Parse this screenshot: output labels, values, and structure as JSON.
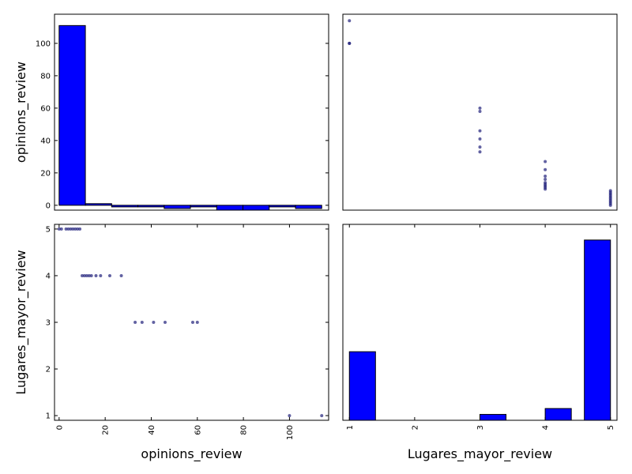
{
  "colors": {
    "bar": "#0000ff",
    "point": "#1f1f7a",
    "frame": "#000000",
    "background": "#ffffff"
  },
  "chart_data": [
    {
      "id": "opinions-hist",
      "type": "bar",
      "subplot": "top-left",
      "xlabel": "",
      "ylabel": "opinions_review",
      "xlim": [
        -2,
        117
      ],
      "ylim": [
        -3,
        118
      ],
      "yticks": [
        "0",
        "20",
        "40",
        "60",
        "80",
        "100"
      ],
      "bins": [
        {
          "x0": 0.0,
          "x1": 11.4,
          "count": 111
        },
        {
          "x0": 11.4,
          "x1": 22.8,
          "count": 1
        },
        {
          "x0": 22.8,
          "x1": 34.2,
          "count": -1
        },
        {
          "x0": 34.2,
          "x1": 45.6,
          "count": -1
        },
        {
          "x0": 45.6,
          "x1": 57.0,
          "count": -2
        },
        {
          "x0": 57.0,
          "x1": 68.4,
          "count": -1
        },
        {
          "x0": 68.4,
          "x1": 79.8,
          "count": -3
        },
        {
          "x0": 79.8,
          "x1": 91.2,
          "count": -3
        },
        {
          "x0": 91.2,
          "x1": 102.6,
          "count": -1
        },
        {
          "x0": 102.6,
          "x1": 114.0,
          "count": -2
        }
      ]
    },
    {
      "id": "scatter-top-right",
      "type": "scatter",
      "subplot": "top-right",
      "xlabel": "",
      "ylabel": "",
      "xlim": [
        0.9,
        5.1
      ],
      "ylim": [
        -3,
        118
      ],
      "points": [
        [
          1,
          114
        ],
        [
          1,
          100
        ],
        [
          1,
          100
        ],
        [
          3,
          60
        ],
        [
          3,
          58
        ],
        [
          3,
          46
        ],
        [
          3,
          41
        ],
        [
          3,
          36
        ],
        [
          3,
          33
        ],
        [
          4,
          27
        ],
        [
          4,
          22
        ],
        [
          4,
          18
        ],
        [
          4,
          16
        ],
        [
          4,
          14
        ],
        [
          4,
          13
        ],
        [
          4,
          12
        ],
        [
          4,
          11
        ],
        [
          4,
          10
        ],
        [
          5,
          9
        ],
        [
          5,
          8
        ],
        [
          5,
          7
        ],
        [
          5,
          6
        ],
        [
          5,
          5
        ],
        [
          5,
          4
        ],
        [
          5,
          3
        ],
        [
          5,
          2
        ],
        [
          5,
          1
        ],
        [
          5,
          0
        ]
      ]
    },
    {
      "id": "scatter-bottom-left",
      "type": "scatter",
      "subplot": "bottom-left",
      "xlabel": "opinions_review",
      "ylabel": "Lugares_mayor_review",
      "xlim": [
        -2,
        117
      ],
      "ylim": [
        0.9,
        5.1
      ],
      "xticks": [
        "0",
        "20",
        "40",
        "60",
        "80",
        "100"
      ],
      "yticks": [
        "1",
        "2",
        "3",
        "4",
        "5"
      ],
      "points": [
        [
          0,
          5
        ],
        [
          1,
          5
        ],
        [
          3,
          5
        ],
        [
          4,
          5
        ],
        [
          5,
          5
        ],
        [
          6,
          5
        ],
        [
          7,
          5
        ],
        [
          8,
          5
        ],
        [
          9,
          5
        ],
        [
          10,
          4
        ],
        [
          11,
          4
        ],
        [
          12,
          4
        ],
        [
          13,
          4
        ],
        [
          14,
          4
        ],
        [
          16,
          4
        ],
        [
          18,
          4
        ],
        [
          22,
          4
        ],
        [
          27,
          4
        ],
        [
          33,
          3
        ],
        [
          36,
          3
        ],
        [
          41,
          3
        ],
        [
          46,
          3
        ],
        [
          58,
          3
        ],
        [
          60,
          3
        ],
        [
          100,
          1
        ],
        [
          114,
          1
        ]
      ]
    },
    {
      "id": "lugares-hist",
      "type": "bar",
      "subplot": "bottom-right",
      "xlabel": "Lugares_mayor_review",
      "ylabel": "",
      "xlim": [
        0.9,
        5.1
      ],
      "ylim": [
        0,
        1
      ],
      "xticks": [
        "1",
        "2",
        "3",
        "4",
        "5"
      ],
      "bins": [
        {
          "x0": 1.0,
          "x1": 1.4,
          "count": 0.35
        },
        {
          "x0": 3.0,
          "x1": 3.4,
          "count": 0.03
        },
        {
          "x0": 4.0,
          "x1": 4.4,
          "count": 0.06
        },
        {
          "x0": 4.6,
          "x1": 5.0,
          "count": 0.92
        }
      ]
    }
  ]
}
